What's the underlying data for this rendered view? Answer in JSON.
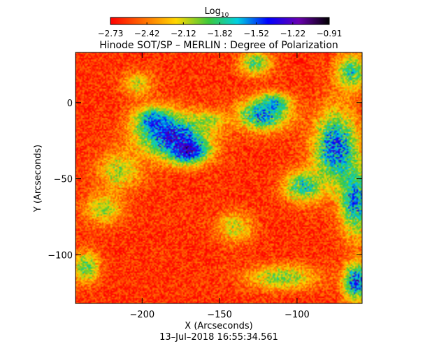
{
  "chart_data": {
    "type": "heatmap",
    "title": "Hinode SOT/SP – MERLIN : Degree of Polarization",
    "xlabel": "X (Arcseconds)",
    "ylabel": "Y (Arcseconds)",
    "timestamp": "13–Jul–2018 16:55:34.561",
    "xlim": [
      -243,
      -58
    ],
    "ylim": [
      -132,
      33
    ],
    "x_ticks": [
      -200,
      -150,
      -100
    ],
    "x_tick_labels": [
      "−200",
      "−150",
      "−100"
    ],
    "y_ticks": [
      0,
      -50,
      -100
    ],
    "y_tick_labels": [
      "0",
      "−50",
      "−100"
    ],
    "colorbar": {
      "title_base": "Log",
      "title_sub": "10",
      "min": -2.73,
      "max": -0.91,
      "tick_labels": [
        "−2.73",
        "−2.42",
        "−2.12",
        "−1.82",
        "−1.52",
        "−1.22",
        "−0.91"
      ],
      "colormap": "rainbow"
    },
    "background_value": -2.6,
    "blobs": [
      {
        "x": -180,
        "y": -22,
        "rx": 22,
        "ry": 14,
        "v": -1.1
      },
      {
        "x": -192,
        "y": -12,
        "rx": 12,
        "ry": 9,
        "v": -1.3
      },
      {
        "x": -170,
        "y": -32,
        "rx": 12,
        "ry": 8,
        "v": -1.0
      },
      {
        "x": -215,
        "y": -45,
        "rx": 14,
        "ry": 12,
        "v": -1.9
      },
      {
        "x": -225,
        "y": -70,
        "rx": 12,
        "ry": 10,
        "v": -1.9
      },
      {
        "x": -236,
        "y": -108,
        "rx": 8,
        "ry": 10,
        "v": -1.7
      },
      {
        "x": -157,
        "y": -12,
        "rx": 10,
        "ry": 6,
        "v": -1.9
      },
      {
        "x": -122,
        "y": -8,
        "rx": 16,
        "ry": 10,
        "v": -1.3
      },
      {
        "x": -115,
        "y": 0,
        "rx": 10,
        "ry": 6,
        "v": -1.5
      },
      {
        "x": -127,
        "y": 26,
        "rx": 10,
        "ry": 8,
        "v": -1.7
      },
      {
        "x": -75,
        "y": -30,
        "rx": 14,
        "ry": 24,
        "v": -1.2
      },
      {
        "x": -62,
        "y": -65,
        "rx": 10,
        "ry": 22,
        "v": -1.3
      },
      {
        "x": -96,
        "y": -55,
        "rx": 12,
        "ry": 10,
        "v": -1.5
      },
      {
        "x": -110,
        "y": -115,
        "rx": 22,
        "ry": 8,
        "v": -1.8
      },
      {
        "x": -62,
        "y": -118,
        "rx": 8,
        "ry": 12,
        "v": -1.1
      },
      {
        "x": -65,
        "y": 20,
        "rx": 10,
        "ry": 12,
        "v": -1.6
      },
      {
        "x": -140,
        "y": -82,
        "rx": 12,
        "ry": 10,
        "v": -2.0
      },
      {
        "x": -203,
        "y": 12,
        "rx": 10,
        "ry": 8,
        "v": -2.0
      }
    ]
  }
}
